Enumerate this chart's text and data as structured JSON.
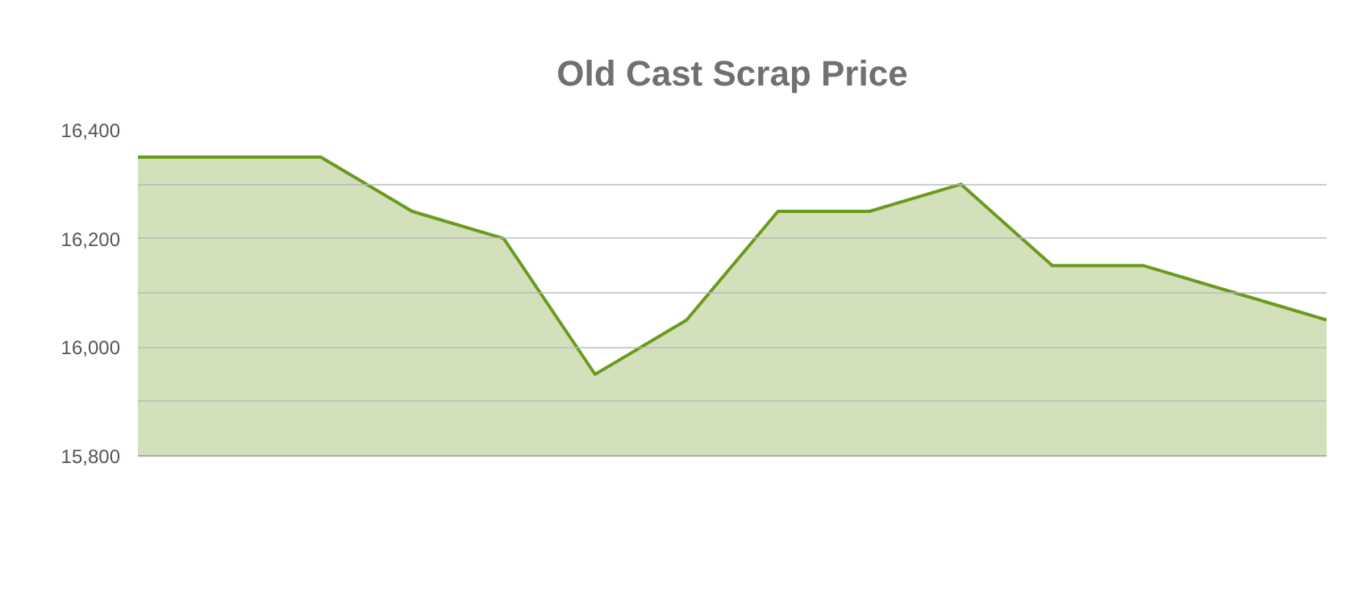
{
  "chart_data": {
    "type": "area",
    "title": "Old Cast Scrap Price",
    "categories": [
      null,
      null,
      null,
      null,
      null,
      null,
      null,
      null,
      null,
      null,
      null,
      null,
      null,
      null
    ],
    "series": [
      {
        "color": "#6b9a1f",
        "values": [
          16350,
          16350,
          16350,
          16250,
          16200,
          15950,
          16050,
          16250,
          16250,
          16300,
          16150,
          16150,
          16100,
          16050
        ]
      }
    ],
    "ylim": [
      15800,
      16400
    ],
    "yticks": [
      {
        "value": 15800,
        "label": "15,800"
      },
      {
        "value": 15900,
        "label": null
      },
      {
        "value": 16000,
        "label": "16,000"
      },
      {
        "value": 16100,
        "label": null
      },
      {
        "value": 16200,
        "label": "16,200"
      },
      {
        "value": 16300,
        "label": null
      },
      {
        "value": 16400,
        "label": "16,400"
      }
    ],
    "grid": "y",
    "marker": "none",
    "line_style": "solid"
  }
}
